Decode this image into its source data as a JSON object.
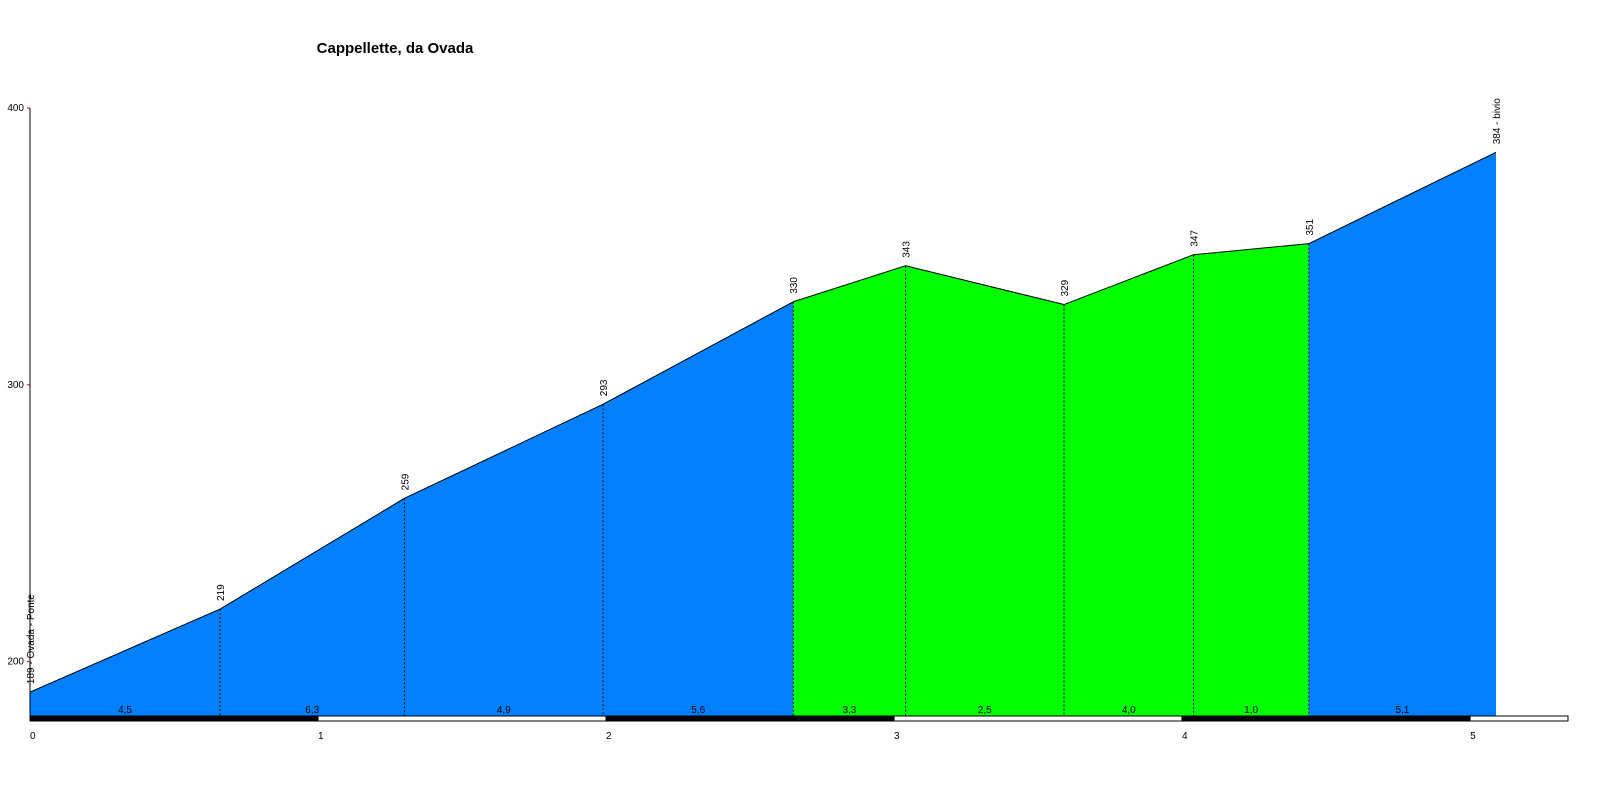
{
  "chart_data": {
    "type": "area",
    "title": "Cappellette, da Ovada",
    "x": [
      0,
      0.66,
      1.3,
      1.99,
      2.65,
      3.04,
      3.59,
      4.04,
      4.44,
      5.09
    ],
    "values": [
      189,
      219,
      259,
      293,
      330,
      343,
      329,
      347,
      351,
      384
    ],
    "value_labels": [
      "189 - Ovada - Ponte",
      "219",
      "259",
      "293",
      "330",
      "343",
      "329",
      "347",
      "351",
      "384 - bivio"
    ],
    "segment_values": [
      4.5,
      6.3,
      4.9,
      5.6,
      3.3,
      2.5,
      4.0,
      1.0,
      5.1
    ],
    "segment_labels": [
      "4,5",
      "6,3",
      "4,9",
      "5,6",
      "3,3",
      "2,5",
      "4,0",
      "1,0",
      "5,1"
    ],
    "segment_colors": [
      "#0080ff",
      "#0080ff",
      "#0080ff",
      "#0080ff",
      "#00ff00",
      "#00ff00",
      "#00ff00",
      "#00ff00",
      "#0080ff"
    ],
    "xlim": [
      0,
      5.34
    ],
    "xticks": [
      0,
      1,
      2,
      3,
      4,
      5
    ],
    "ylim": [
      180,
      400
    ],
    "yticks": [
      200,
      300,
      400
    ]
  }
}
